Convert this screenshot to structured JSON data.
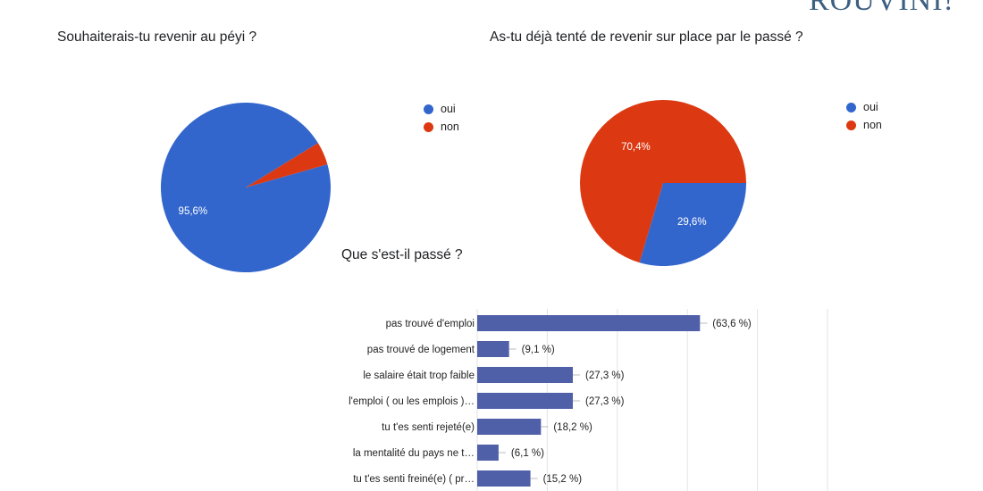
{
  "brand": "ROUVINI!",
  "colors": {
    "oui": "#3366cc",
    "non": "#dc3912",
    "bar": "#5060a8",
    "grid": "#e3e3e3"
  },
  "chart_data": [
    {
      "type": "pie",
      "title": "Souhaiterais-tu revenir au péyi ?",
      "labels": [
        "oui",
        "non"
      ],
      "values": [
        95.6,
        4.4
      ],
      "slice_labels": [
        "95,6%",
        ""
      ],
      "legend": "right"
    },
    {
      "type": "pie",
      "title": "As-tu déjà tenté de revenir sur place par le passé ?",
      "labels": [
        "oui",
        "non"
      ],
      "values": [
        29.6,
        70.4
      ],
      "slice_labels": [
        "29,6%",
        "70,4%"
      ],
      "legend": "right"
    },
    {
      "type": "bar",
      "orientation": "horizontal",
      "title": "Que s'est-il passé ?",
      "categories": [
        "pas trouvé d'emploi",
        "pas trouvé de logement",
        "le salaire était trop faible",
        "l'emploi ( ou les emplois )…",
        "tu t'es senti rejeté(e)",
        "la mentalité du pays ne t…",
        "tu t'es senti freiné(e) ( pr…"
      ],
      "values": [
        63.6,
        9.1,
        27.3,
        27.3,
        18.2,
        6.1,
        15.2
      ],
      "value_labels": [
        "(63,6 %)",
        "(9,1 %)",
        "(27,3 %)",
        "(27,3 %)",
        "(18,2 %)",
        "(6,1 %)",
        "(15,2 %)"
      ],
      "xlim": [
        0,
        100
      ],
      "grid": true
    }
  ]
}
